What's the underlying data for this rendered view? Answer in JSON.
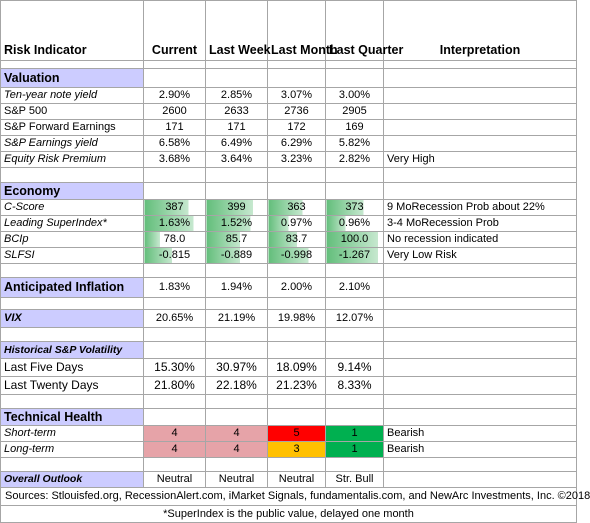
{
  "table": {
    "header": [
      "Risk Indicator",
      "Current",
      "Last Week",
      "Last Month",
      "Last Quarter",
      "Interpretation"
    ],
    "sections": [
      {
        "title": "Valuation",
        "rows": [
          [
            "Ten-year note yield",
            "2.90%",
            "2.85%",
            "3.07%",
            "3.00%"
          ],
          [
            "S&P 500",
            "2600",
            "2633",
            "2736",
            "2905"
          ],
          [
            "S&P Forward Earnings",
            "171",
            "171",
            "172",
            "169"
          ],
          [
            "S&P Earnings yield",
            "6.58%",
            "6.49%",
            "6.29%",
            "5.82%"
          ],
          [
            "Equity Risk Premium",
            "3.68%",
            "3.64%",
            "3.23%",
            "2.82%",
            "Very High"
          ]
        ]
      },
      {
        "title": "Economy",
        "rows": [
          [
            "C-Score",
            "387",
            "399",
            "363",
            "373",
            "9 MoRecession Prob about 22%"
          ],
          [
            "Leading SuperIndex*",
            "1.63%",
            "1.52%",
            "0.97%",
            "0.96%",
            "3-4 MoRecession Prob"
          ],
          [
            "BCIp",
            "78.0",
            "85.7",
            "83.7",
            "100.0",
            "No recession indicated"
          ],
          [
            "SLFSI",
            "-0.815",
            "-0.889",
            "-0.998",
            "-1.267",
            "Very Low Risk"
          ]
        ]
      },
      {
        "title": "Anticipated Inflation",
        "values": [
          "1.83%",
          "1.94%",
          "2.00%",
          "2.10%"
        ]
      },
      {
        "title": "VIX",
        "values": [
          "20.65%",
          "21.19%",
          "19.98%",
          "12.07%"
        ]
      },
      {
        "title": "Historical  S&P Volatility",
        "rows": [
          [
            "Last Five Days",
            "15.30%",
            "30.97%",
            "18.09%",
            "9.14%"
          ],
          [
            "Last Twenty Days",
            "21.80%",
            "22.18%",
            "21.23%",
            "8.33%"
          ]
        ]
      },
      {
        "title": "Technical Health",
        "rows": [
          [
            "Short-term",
            "4",
            "4",
            "5",
            "1",
            "Bearish"
          ],
          [
            "Long-term",
            "4",
            "4",
            "3",
            "1",
            "Bearish"
          ]
        ]
      },
      {
        "title": "Overall Outlook",
        "values": [
          "Neutral",
          "Neutral",
          "Neutral",
          "Str. Bull"
        ]
      }
    ]
  },
  "footer": {
    "sources": "Sources: Stlouisfed.org, RecessionAlert.com, iMarket Signals, fundamentalis.com, and NewArc Investments, Inc. ©2018",
    "note": "*SuperIndex is the public value, delayed one month"
  }
}
